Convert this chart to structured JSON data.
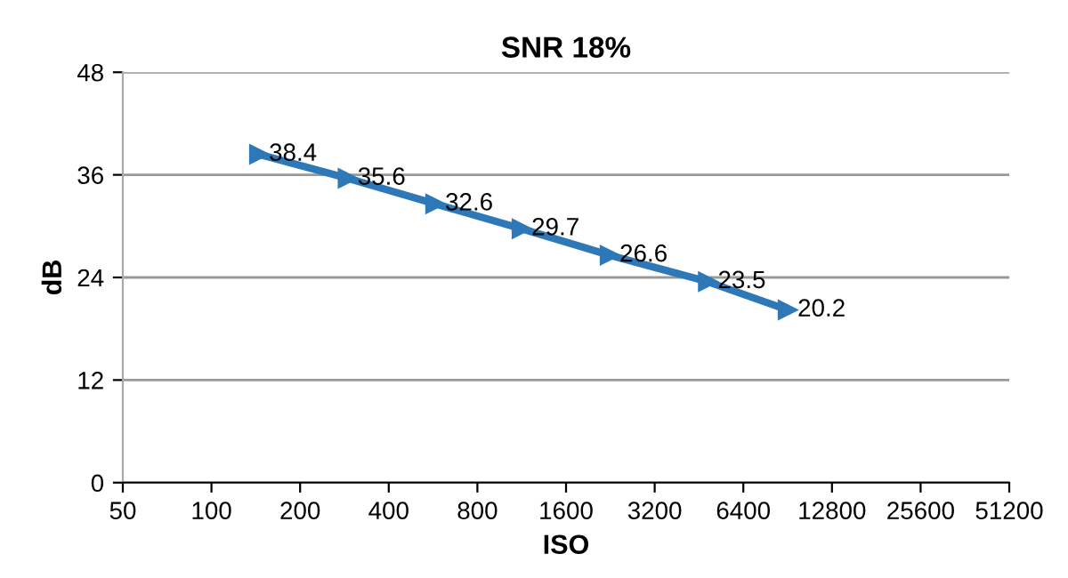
{
  "chart_data": {
    "type": "line",
    "title": "SNR 18%",
    "xlabel": "ISO",
    "ylabel": "dB",
    "x": [
      145,
      290,
      575,
      1130,
      2250,
      4850,
      9050
    ],
    "series": [
      {
        "color": "#2e78b7",
        "values": [
          38.4,
          35.6,
          32.6,
          29.7,
          26.6,
          23.5,
          20.2
        ]
      }
    ],
    "log": "x",
    "xlim": [
      50,
      51200
    ],
    "xticks": [
      50,
      100,
      200,
      400,
      800,
      1600,
      3200,
      6400,
      12800,
      25600,
      51200
    ],
    "ylim": [
      0,
      48
    ],
    "yticks": [
      0,
      12,
      24,
      36,
      48
    ],
    "grid": "y",
    "marker": "triangle",
    "line_style": "solid",
    "data_labels": true
  }
}
